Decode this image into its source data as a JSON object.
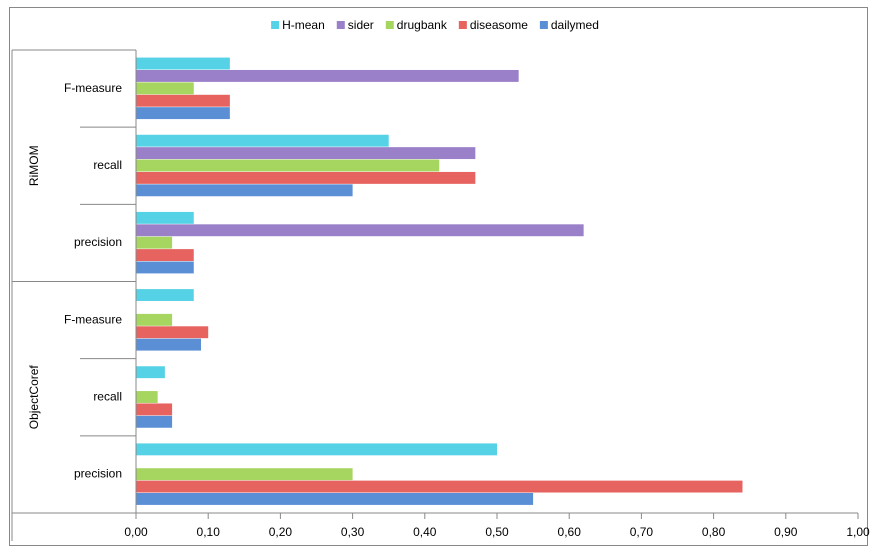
{
  "chart_data": {
    "type": "bar",
    "orientation": "horizontal",
    "groups": [
      {
        "name": "RiMOM",
        "categories": [
          "F-measure",
          "recall",
          "precision"
        ]
      },
      {
        "name": "ObjectCoref",
        "categories": [
          "F-measure",
          "recall",
          "precision"
        ]
      }
    ],
    "series": [
      {
        "name": "H-mean",
        "color": "#56d2e6",
        "values": [
          0.13,
          0.35,
          0.08,
          0.08,
          0.04,
          0.5
        ]
      },
      {
        "name": "sider",
        "color": "#9a80c8",
        "values": [
          0.53,
          0.47,
          0.62,
          null,
          null,
          null
        ]
      },
      {
        "name": "drugbank",
        "color": "#a6d560",
        "values": [
          0.08,
          0.42,
          0.05,
          0.05,
          0.03,
          0.3
        ]
      },
      {
        "name": "diseasome",
        "color": "#e6635f",
        "values": [
          0.13,
          0.47,
          0.08,
          0.1,
          0.05,
          0.84
        ]
      },
      {
        "name": "dailymed",
        "color": "#5a8fd6",
        "values": [
          0.13,
          0.3,
          0.08,
          0.09,
          0.05,
          0.55
        ]
      }
    ],
    "xlim": [
      0,
      1
    ],
    "xticks": [
      {
        "value": 0,
        "label": "0,00"
      },
      {
        "value": 0.1,
        "label": "0,10"
      },
      {
        "value": 0.2,
        "label": "0,20"
      },
      {
        "value": 0.3,
        "label": "0,30"
      },
      {
        "value": 0.4,
        "label": "0,40"
      },
      {
        "value": 0.5,
        "label": "0,50"
      },
      {
        "value": 0.6,
        "label": "0,60"
      },
      {
        "value": 0.7,
        "label": "0,70"
      },
      {
        "value": 0.8,
        "label": "0,80"
      },
      {
        "value": 0.9,
        "label": "0,90"
      },
      {
        "value": 1,
        "label": "1,00"
      }
    ],
    "legend": "top"
  }
}
